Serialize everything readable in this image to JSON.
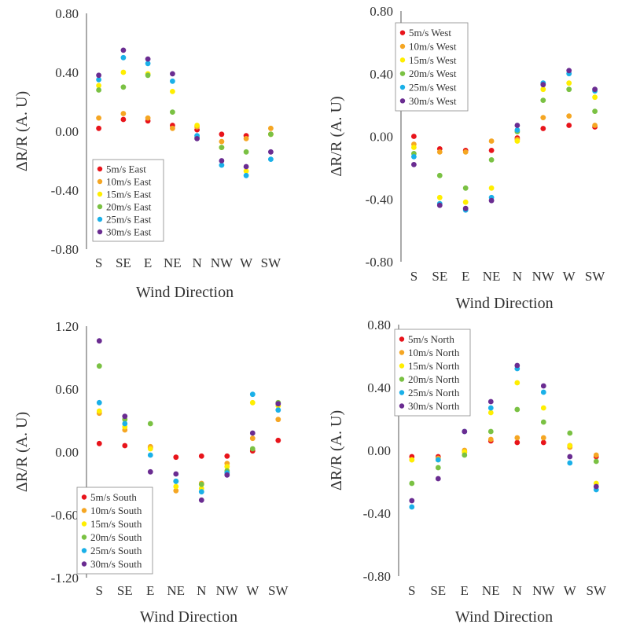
{
  "chart_data": [
    {
      "type": "scatter",
      "id": "east",
      "xlabel": "Wind Direction",
      "ylabel": "ΔR/R (A. U)",
      "categories": [
        "S",
        "SE",
        "E",
        "NE",
        "N",
        "NW",
        "W",
        "SW"
      ],
      "ylim": [
        -0.8,
        0.8
      ],
      "yticks": [
        "0.80",
        "0.40",
        "0.00",
        "-0.40",
        "-0.80"
      ],
      "ytick_values": [
        0.8,
        0.4,
        0.0,
        -0.4,
        -0.8
      ],
      "legend_position": "bottom-left",
      "series": [
        {
          "name": "5m/s East",
          "color": "#e8141b",
          "values": [
            0.02,
            0.08,
            0.07,
            0.04,
            0.01,
            -0.02,
            -0.03,
            -0.02
          ]
        },
        {
          "name": "10m/s East",
          "color": "#f5a623",
          "values": [
            0.09,
            0.12,
            0.09,
            0.02,
            0.03,
            -0.07,
            -0.05,
            0.02
          ]
        },
        {
          "name": "15m/s East",
          "color": "#ffee00",
          "values": [
            0.31,
            0.4,
            0.39,
            0.27,
            0.04,
            -0.11,
            -0.27,
            -0.02
          ]
        },
        {
          "name": "20m/s East",
          "color": "#7ac143",
          "values": [
            0.28,
            0.3,
            0.38,
            0.13,
            -0.04,
            -0.11,
            -0.14,
            -0.02
          ]
        },
        {
          "name": "25m/s East",
          "color": "#1ab0e8",
          "values": [
            0.35,
            0.5,
            0.46,
            0.34,
            -0.03,
            -0.23,
            -0.3,
            -0.19
          ]
        },
        {
          "name": "30m/s East",
          "color": "#6a2c91",
          "values": [
            0.38,
            0.55,
            0.49,
            0.39,
            -0.05,
            -0.2,
            -0.24,
            -0.14
          ]
        }
      ]
    },
    {
      "type": "scatter",
      "id": "west",
      "xlabel": "Wind Direction",
      "ylabel": "ΔR/R (A. U)",
      "categories": [
        "S",
        "SE",
        "E",
        "NE",
        "N",
        "NW",
        "W",
        "SW"
      ],
      "ylim": [
        -0.8,
        0.8
      ],
      "yticks": [
        "0.80",
        "0.40",
        "0.00",
        "-0.40",
        "-0.80"
      ],
      "ytick_values": [
        0.8,
        0.4,
        0.0,
        -0.4,
        -0.8
      ],
      "legend_position": "top-left",
      "series": [
        {
          "name": "5m/s West",
          "color": "#e8141b",
          "values": [
            0.0,
            -0.08,
            -0.09,
            -0.09,
            -0.01,
            0.05,
            0.07,
            0.06
          ]
        },
        {
          "name": "10m/s West",
          "color": "#f5a623",
          "values": [
            -0.05,
            -0.1,
            -0.1,
            -0.03,
            -0.02,
            0.12,
            0.13,
            0.07
          ]
        },
        {
          "name": "15m/s West",
          "color": "#ffee00",
          "values": [
            -0.07,
            -0.39,
            -0.42,
            -0.33,
            -0.03,
            0.3,
            0.34,
            0.25
          ]
        },
        {
          "name": "20m/s West",
          "color": "#7ac143",
          "values": [
            -0.11,
            -0.25,
            -0.33,
            -0.15,
            0.03,
            0.23,
            0.3,
            0.16
          ]
        },
        {
          "name": "25m/s West",
          "color": "#1ab0e8",
          "values": [
            -0.13,
            -0.43,
            -0.47,
            -0.39,
            0.04,
            0.34,
            0.4,
            0.29
          ]
        },
        {
          "name": "30m/s West",
          "color": "#6a2c91",
          "values": [
            -0.18,
            -0.44,
            -0.46,
            -0.41,
            0.07,
            0.33,
            0.42,
            0.3
          ]
        }
      ]
    },
    {
      "type": "scatter",
      "id": "south",
      "xlabel": "Wind Direction",
      "ylabel": "ΔR/R (A. U)",
      "categories": [
        "S",
        "SE",
        "E",
        "NE",
        "N",
        "NW",
        "W",
        "SW"
      ],
      "ylim": [
        -1.2,
        1.2
      ],
      "yticks": [
        "1.20",
        "0.60",
        "0.00",
        "-0.60",
        "-1.20"
      ],
      "ytick_values": [
        1.2,
        0.6,
        0.0,
        -0.6,
        -1.2
      ],
      "legend_position": "bottom-left",
      "series": [
        {
          "name": "5m/s South",
          "color": "#e8141b",
          "values": [
            0.08,
            0.06,
            0.04,
            -0.05,
            -0.04,
            -0.04,
            0.01,
            0.11
          ]
        },
        {
          "name": "10m/s South",
          "color": "#f5a623",
          "values": [
            0.37,
            0.21,
            0.05,
            -0.37,
            -0.3,
            -0.11,
            0.13,
            0.31
          ]
        },
        {
          "name": "15m/s South",
          "color": "#ffee00",
          "values": [
            0.39,
            0.24,
            0.03,
            -0.33,
            -0.35,
            -0.14,
            0.47,
            0.44
          ]
        },
        {
          "name": "20m/s South",
          "color": "#7ac143",
          "values": [
            0.82,
            0.31,
            0.27,
            -0.28,
            -0.31,
            -0.18,
            0.03,
            0.47
          ]
        },
        {
          "name": "25m/s South",
          "color": "#1ab0e8",
          "values": [
            0.47,
            0.27,
            -0.03,
            -0.28,
            -0.38,
            -0.2,
            0.55,
            0.4
          ]
        },
        {
          "name": "30m/s South",
          "color": "#6a2c91",
          "values": [
            1.06,
            0.34,
            -0.19,
            -0.21,
            -0.46,
            -0.22,
            0.18,
            0.46
          ]
        }
      ]
    },
    {
      "type": "scatter",
      "id": "north",
      "xlabel": "Wind Direction",
      "ylabel": "ΔR/R (A. U)",
      "categories": [
        "S",
        "SE",
        "E",
        "NE",
        "N",
        "NW",
        "W",
        "SW"
      ],
      "ylim": [
        -0.8,
        0.8
      ],
      "yticks": [
        "0.80",
        "0.40",
        "0.00",
        "-0.40",
        "-0.80"
      ],
      "ytick_values": [
        0.8,
        0.4,
        0.0,
        -0.4,
        -0.8
      ],
      "legend_position": "top-left",
      "series": [
        {
          "name": "5m/s North",
          "color": "#e8141b",
          "values": [
            -0.04,
            -0.04,
            -0.01,
            0.06,
            0.05,
            0.05,
            0.03,
            -0.04
          ]
        },
        {
          "name": "10m/s North",
          "color": "#f5a623",
          "values": [
            -0.06,
            -0.05,
            0.0,
            0.07,
            0.08,
            0.08,
            0.02,
            -0.03
          ]
        },
        {
          "name": "15m/s North",
          "color": "#ffee00",
          "values": [
            -0.06,
            -0.06,
            -0.01,
            0.24,
            0.43,
            0.27,
            0.03,
            -0.21
          ]
        },
        {
          "name": "20m/s North",
          "color": "#7ac143",
          "values": [
            -0.21,
            -0.11,
            -0.03,
            0.12,
            0.26,
            0.18,
            0.11,
            -0.07
          ]
        },
        {
          "name": "25m/s North",
          "color": "#1ab0e8",
          "values": [
            -0.36,
            -0.06,
            0.12,
            0.27,
            0.52,
            0.37,
            -0.08,
            -0.25
          ]
        },
        {
          "name": "30m/s North",
          "color": "#6a2c91",
          "values": [
            -0.32,
            -0.18,
            0.12,
            0.31,
            0.54,
            0.41,
            -0.04,
            -0.23
          ]
        }
      ]
    }
  ]
}
